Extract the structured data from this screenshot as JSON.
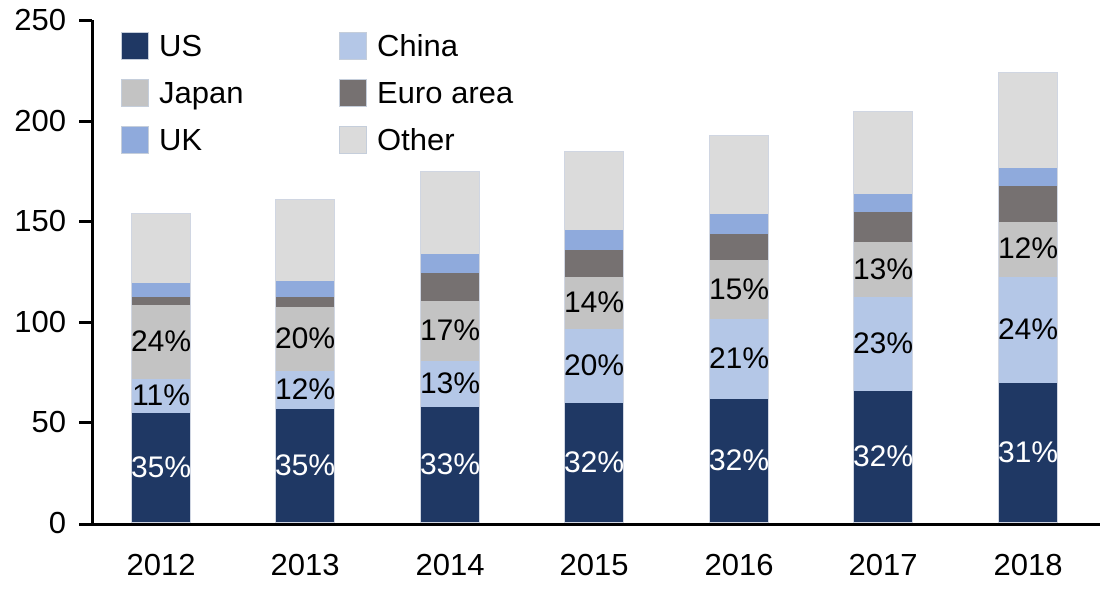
{
  "chart_data": {
    "type": "bar",
    "stacked": true,
    "title": "",
    "xlabel": "",
    "ylabel": "",
    "categories": [
      "2012",
      "2013",
      "2014",
      "2015",
      "2016",
      "2017",
      "2018"
    ],
    "series": [
      {
        "name": "US",
        "color": "#1F3864",
        "values": [
          54,
          56,
          57,
          59,
          61,
          65,
          69
        ],
        "labels": [
          "35%",
          "35%",
          "33%",
          "32%",
          "32%",
          "32%",
          "31%"
        ],
        "label_color": "#FFFFFF"
      },
      {
        "name": "China",
        "color": "#B4C7E7",
        "values": [
          17,
          19,
          23,
          37,
          40,
          47,
          53
        ],
        "labels": [
          "11%",
          "12%",
          "13%",
          "20%",
          "21%",
          "23%",
          "24%"
        ],
        "label_color": "#000000"
      },
      {
        "name": "Japan",
        "color": "#C3C3C3",
        "values": [
          37,
          32,
          30,
          26,
          29,
          27,
          27
        ],
        "labels": [
          "24%",
          "20%",
          "17%",
          "14%",
          "15%",
          "13%",
          "12%"
        ],
        "label_color": "#000000"
      },
      {
        "name": "Euro area",
        "color": "#767171",
        "values": [
          4,
          5,
          14,
          13,
          13,
          15,
          18
        ],
        "labels": null,
        "label_color": "#000000"
      },
      {
        "name": "UK",
        "color": "#8FAADC",
        "values": [
          7,
          8,
          9,
          10,
          10,
          9,
          9
        ],
        "labels": null,
        "label_color": "#000000"
      },
      {
        "name": "Other",
        "color": "#DBDBDB",
        "values": [
          34,
          40,
          41,
          39,
          39,
          41,
          47
        ],
        "labels": null,
        "label_color": "#000000"
      }
    ],
    "totals": [
      153,
      160,
      174,
      184,
      192,
      204,
      223
    ],
    "ylim": [
      0,
      250
    ],
    "yticks": [
      "0",
      "50",
      "100",
      "150",
      "200",
      "250"
    ],
    "grid": false,
    "legend_position": "top-left",
    "legend_order": [
      "US",
      "China",
      "Japan",
      "Euro area",
      "UK",
      "Other"
    ],
    "axis_color": "#000000",
    "background_color": "#FFFFFF"
  }
}
